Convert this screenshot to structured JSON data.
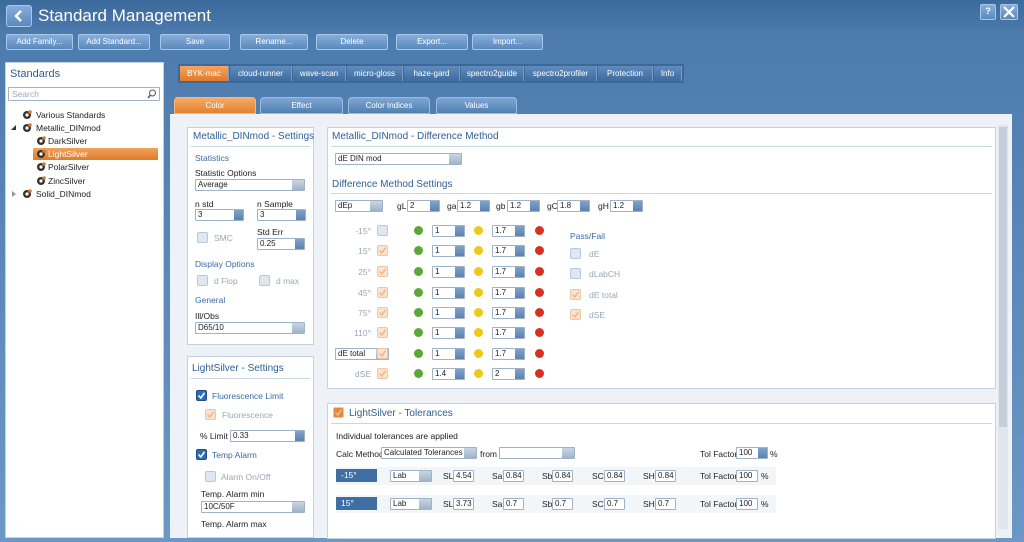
{
  "header": {
    "title": "Standard Management",
    "help": "?"
  },
  "toolbar": [
    "Add Family...",
    "Add Standard...",
    "Save",
    "Rename...",
    "Delete",
    "Export...",
    "Import..."
  ],
  "sidebar": {
    "title": "Standards",
    "search_placeholder": "Search",
    "tree": [
      {
        "label": "Various Standards"
      },
      {
        "label": "Metallic_DINmod",
        "expanded": true,
        "children": [
          {
            "label": "DarkSilver"
          },
          {
            "label": "LightSilver",
            "selected": true
          },
          {
            "label": "PolarSilver"
          },
          {
            "label": "ZincSilver"
          }
        ]
      },
      {
        "label": "Solid_DINmod",
        "expanded": false
      }
    ]
  },
  "device_tabs": [
    {
      "label": "BYK-mac",
      "active": true
    },
    {
      "label": "cloud-runner"
    },
    {
      "label": "wave-scan"
    },
    {
      "label": "micro-gloss"
    },
    {
      "label": "haze-gard"
    },
    {
      "label": "spectro2guide"
    },
    {
      "label": "spectro2profiler"
    },
    {
      "label": "Protection"
    },
    {
      "label": "Info"
    }
  ],
  "sub_tabs": [
    {
      "label": "Color",
      "active": true
    },
    {
      "label": "Effect"
    },
    {
      "label": "Color Indices"
    },
    {
      "label": "Values"
    }
  ],
  "family_settings": {
    "title": "Metallic_DINmod - Settings",
    "statistics": {
      "heading": "Statistics",
      "options_label": "Statistic Options",
      "options_value": "Average",
      "n_std_label": "n std",
      "n_std": 3,
      "n_sample_label": "n Sample",
      "n_sample": 3,
      "smc_label": "SMC",
      "std_err_label": "Std Err",
      "std_err": 0.25
    },
    "display": {
      "heading": "Display Options",
      "d_flop_label": "d Flop",
      "d_max_label": "d max"
    },
    "general": {
      "heading": "General",
      "ill_obs_label": "Ill/Obs",
      "ill_obs": "D65/10"
    }
  },
  "standard_settings": {
    "title": "LightSilver - Settings",
    "fluorescence_limit_label": "Fluorescence Limit",
    "fluorescence_label": "Fluorescence",
    "limit_label": "% Limit",
    "limit": 0.33,
    "temp_alarm_label": "Temp Alarm",
    "alarm_label": "Alarm On/Off",
    "alarm_min_label": "Temp. Alarm min",
    "alarm_min": "10C/50F",
    "alarm_max_label": "Temp. Alarm max"
  },
  "difference": {
    "title": "Metallic_DINmod - Difference Method",
    "method": "dE DIN mod",
    "settings_heading": "Difference Method Settings",
    "mode": "dEp",
    "weights": [
      {
        "label": "gL",
        "value": 2
      },
      {
        "label": "ga",
        "value": 1.2
      },
      {
        "label": "gb",
        "value": 1.2
      },
      {
        "label": "gC",
        "value": 1.8
      },
      {
        "label": "gH",
        "value": 1.2
      }
    ],
    "rows": [
      {
        "label": "-15°",
        "checked": false,
        "warn": 1,
        "fail": 1.7
      },
      {
        "label": "15°",
        "checked": true,
        "warn": 1,
        "fail": 1.7
      },
      {
        "label": "25°",
        "checked": true,
        "warn": 1,
        "fail": 1.7
      },
      {
        "label": "45°",
        "checked": true,
        "warn": 1,
        "fail": 1.7
      },
      {
        "label": "75°",
        "checked": true,
        "warn": 1,
        "fail": 1.7
      },
      {
        "label": "110°",
        "checked": true,
        "warn": 1,
        "fail": 1.7
      },
      {
        "label": "dE total",
        "dropdown": true,
        "checked": true,
        "warn": 1,
        "fail": 1.7
      },
      {
        "label": "dSE",
        "checked": true,
        "warn": 1.4,
        "fail": 2
      }
    ],
    "pass_fail": {
      "heading": "Pass/Fail",
      "items": [
        {
          "label": "dE",
          "checked": false
        },
        {
          "label": "dLabCH",
          "checked": false
        },
        {
          "label": "dE total",
          "checked": true
        },
        {
          "label": "dSE",
          "checked": true
        }
      ]
    }
  },
  "tolerances": {
    "title": "LightSilver - Tolerances",
    "note": "Individual tolerances are applied",
    "calc_label": "Calc Method",
    "calc_method": "Calculated Tolerances",
    "from_label": "from",
    "tol_factor_label": "Tol Factor",
    "tol_factor": 100,
    "percent": "%",
    "columns": [
      "SL",
      "Sa",
      "Sb",
      "SC",
      "SH"
    ],
    "rows": [
      {
        "angle": "-15°",
        "space": "Lab",
        "values": [
          4.54,
          0.84,
          0.84,
          0.84,
          0.84
        ],
        "tol_factor": 100
      },
      {
        "angle": "15°",
        "space": "Lab",
        "values": [
          3.73,
          0.7,
          0.7,
          0.7,
          0.7
        ],
        "tol_factor": 100
      }
    ]
  }
}
